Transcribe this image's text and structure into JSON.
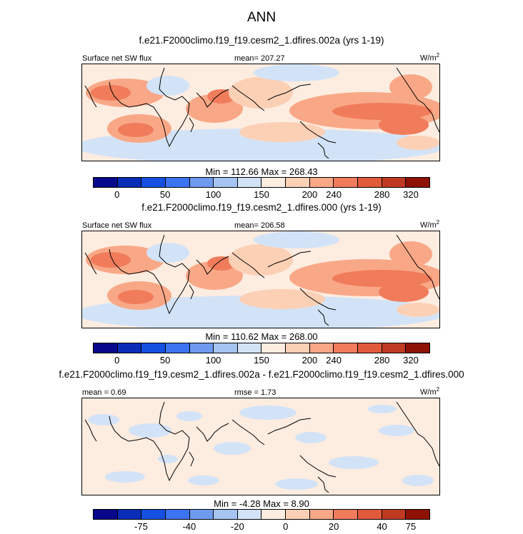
{
  "figure": {
    "title": "ANN"
  },
  "palettes": {
    "abs": [
      "#08088a",
      "#0a2db8",
      "#1550e0",
      "#3c73f0",
      "#6e9af0",
      "#a6c4f2",
      "#d3e3f7",
      "#fdece0",
      "#fcd0b5",
      "#f9a887",
      "#f07c5c",
      "#e15a3c",
      "#c03a22",
      "#8e1205"
    ],
    "diff": [
      "#08088a",
      "#0a2db8",
      "#1550e0",
      "#3c73f0",
      "#6e9af0",
      "#a6c4f2",
      "#d3e3f7",
      "#fdece0",
      "#fcd0b5",
      "#f9a887",
      "#f07c5c",
      "#e15a3c",
      "#c03a22",
      "#8e1205"
    ]
  },
  "chart_data": [
    {
      "type": "heatmap",
      "title": "f.e21.F2000climo.f19_f19.cesm2_1.dfires.002a (yrs 1-19)",
      "variable": "Surface net SW flux",
      "mean_label": "mean=",
      "mean": "207.27",
      "units": "W/m",
      "units_sup": "2",
      "min_max": "Min = 112.66 Max = 268.43",
      "colorbar_ticks": [
        "0",
        "50",
        "100",
        "150",
        "200",
        "240",
        "280",
        "320"
      ],
      "levels": [
        0,
        25,
        50,
        75,
        100,
        125,
        150,
        175,
        200,
        220,
        240,
        260,
        280,
        300,
        320
      ]
    },
    {
      "type": "heatmap",
      "title": "f.e21.F2000climo.f19_f19.cesm2_1.dfires.000 (yrs 1-19)",
      "variable": "Surface net SW flux",
      "mean_label": "mean=",
      "mean": "206.58",
      "units": "W/m",
      "units_sup": "2",
      "min_max": "Min = 110.62 Max = 268.00",
      "colorbar_ticks": [
        "0",
        "50",
        "100",
        "150",
        "200",
        "240",
        "280",
        "320"
      ],
      "levels": [
        0,
        25,
        50,
        75,
        100,
        125,
        150,
        175,
        200,
        220,
        240,
        260,
        280,
        300,
        320
      ]
    },
    {
      "type": "heatmap",
      "title": "f.e21.F2000climo.f19_f19.cesm2_1.dfires.002a - f.e21.F2000climo.f19_f19.cesm2_1.dfires.000",
      "mean_label": "mean =",
      "mean": "0.69",
      "rmse_label": "rmse =",
      "rmse": "1.73",
      "units": "W/m",
      "units_sup": "2",
      "min_max": "Min =  -4.28 Max =   8.90",
      "colorbar_ticks": [
        "-75",
        "-40",
        "-20",
        "0",
        "20",
        "40",
        "75"
      ],
      "levels": [
        -100,
        -75,
        -50,
        -40,
        -30,
        -20,
        -10,
        0,
        10,
        20,
        30,
        40,
        50,
        75,
        100
      ]
    }
  ]
}
